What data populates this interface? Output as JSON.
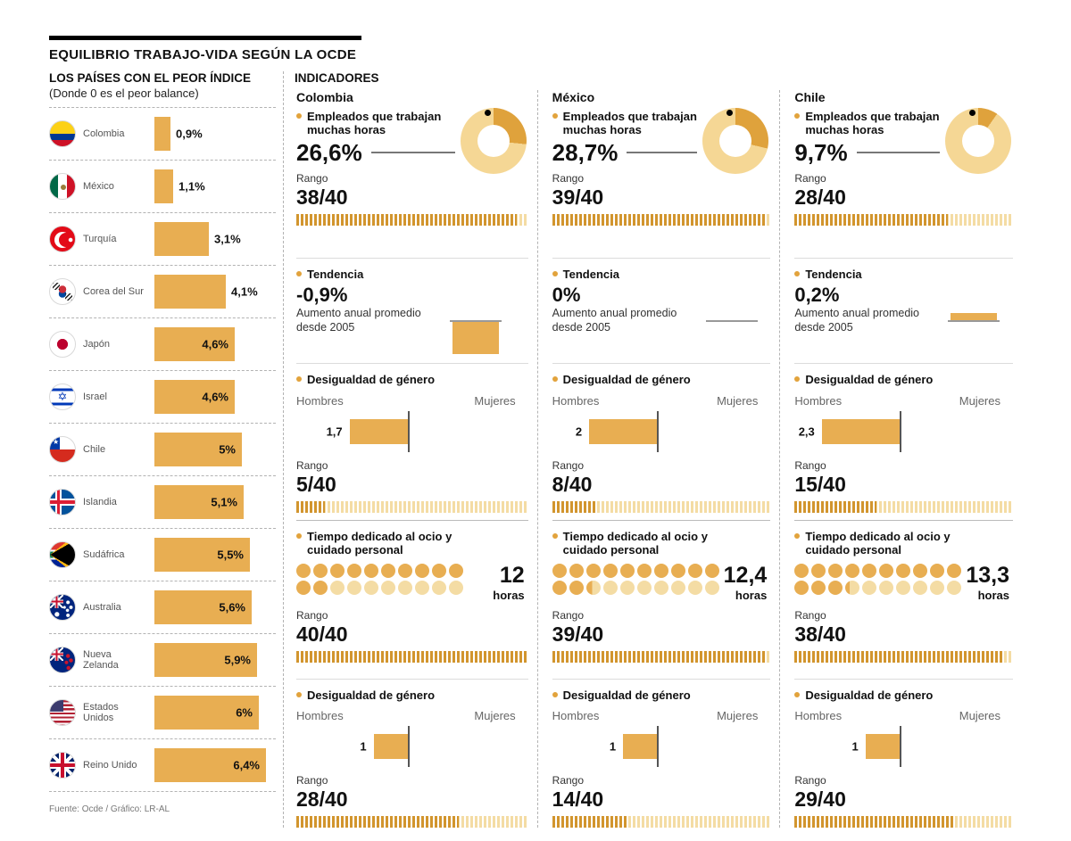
{
  "title": "EQUILIBRIO TRABAJO-VIDA SEGÚN LA OCDE",
  "colors": {
    "gold": "#e8ae52",
    "gold_dark": "#d2952e",
    "gold_light": "#f4dca4",
    "donut_ring": "#f5d795",
    "donut_segment": "#dfa23c",
    "dot_full": "#e8ae52",
    "dot_empty": "#f4dca4",
    "bullet": "#e2a33c"
  },
  "left_panel": {
    "heading": "LOS PAÍSES CON EL PEOR ÍNDICE",
    "subheading": "(Donde 0 es el peor balance)",
    "source": "Fuente: Ocde / Gráfico: LR-AL",
    "countries": [
      {
        "name": "Colombia",
        "label": "0,9%",
        "value": 0.9,
        "flag": "co"
      },
      {
        "name": "México",
        "label": "1,1%",
        "value": 1.1,
        "flag": "mx"
      },
      {
        "name": "Turquía",
        "label": "3,1%",
        "value": 3.1,
        "flag": "tr"
      },
      {
        "name": "Corea del Sur",
        "label": "4,1%",
        "value": 4.1,
        "flag": "kr"
      },
      {
        "name": "Japón",
        "label": "4,6%",
        "value": 4.6,
        "flag": "jp"
      },
      {
        "name": "Israel",
        "label": "4,6%",
        "value": 4.6,
        "flag": "il"
      },
      {
        "name": "Chile",
        "label": "5%",
        "value": 5.0,
        "flag": "cl"
      },
      {
        "name": "Islandia",
        "label": "5,1%",
        "value": 5.1,
        "flag": "is"
      },
      {
        "name": "Sudáfrica",
        "label": "5,5%",
        "value": 5.5,
        "flag": "za"
      },
      {
        "name": "Australia",
        "label": "5,6%",
        "value": 5.6,
        "flag": "au"
      },
      {
        "name": "Nueva Zelanda",
        "label": "5,9%",
        "value": 5.9,
        "flag": "nz"
      },
      {
        "name": "Estados Unidos",
        "label": "6%",
        "value": 6.0,
        "flag": "us"
      },
      {
        "name": "Reino Unido",
        "label": "6,4%",
        "value": 6.4,
        "flag": "gb"
      }
    ]
  },
  "indicators": {
    "heading": "INDICADORES",
    "columns": [
      {
        "country": "Colombia",
        "long_hours": {
          "title": "Empleados que trabajan muchas horas",
          "value_label": "26,6%",
          "pct": 26.6,
          "rango_label": "Rango",
          "rank_label": "38/40",
          "rank": 38
        },
        "trend": {
          "title": "Tendencia",
          "value_label": "-0,9%",
          "pct": -0.9,
          "note": "Aumento anual promedio desde 2005"
        },
        "gender_work": {
          "title": "Desigualdad de género",
          "left_label": "Hombres",
          "right_label": "Mujeres",
          "value_label": "1,7",
          "value": 1.7,
          "rango_label": "Rango",
          "rank_label": "5/40",
          "rank": 5
        },
        "leisure": {
          "title": "Tiempo dedicado al ocio y cuidado personal",
          "value_label": "12",
          "hours": 12,
          "unit": "horas",
          "rango_label": "Rango",
          "rank_label": "40/40",
          "rank": 40
        },
        "gender_leisure": {
          "title": "Desigualdad de género",
          "left_label": "Hombres",
          "right_label": "Mujeres",
          "value_label": "1",
          "value": 1,
          "rango_label": "Rango",
          "rank_label": "28/40",
          "rank": 28
        }
      },
      {
        "country": "México",
        "long_hours": {
          "title": "Empleados que trabajan muchas horas",
          "value_label": "28,7%",
          "pct": 28.7,
          "rango_label": "Rango",
          "rank_label": "39/40",
          "rank": 39
        },
        "trend": {
          "title": "Tendencia",
          "value_label": "0%",
          "pct": 0,
          "note": "Aumento anual promedio desde 2005"
        },
        "gender_work": {
          "title": "Desigualdad de género",
          "left_label": "Hombres",
          "right_label": "Mujeres",
          "value_label": "2",
          "value": 2,
          "rango_label": "Rango",
          "rank_label": "8/40",
          "rank": 8
        },
        "leisure": {
          "title": "Tiempo dedicado al ocio y cuidado personal",
          "value_label": "12,4",
          "hours": 12.4,
          "unit": "horas",
          "rango_label": "Rango",
          "rank_label": "39/40",
          "rank": 39
        },
        "gender_leisure": {
          "title": "Desigualdad de género",
          "left_label": "Hombres",
          "right_label": "Mujeres",
          "value_label": "1",
          "value": 1,
          "rango_label": "Rango",
          "rank_label": "14/40",
          "rank": 14
        }
      },
      {
        "country": "Chile",
        "long_hours": {
          "title": "Empleados que trabajan muchas horas",
          "value_label": "9,7%",
          "pct": 9.7,
          "rango_label": "Rango",
          "rank_label": "28/40",
          "rank": 28
        },
        "trend": {
          "title": "Tendencia",
          "value_label": "0,2%",
          "pct": 0.2,
          "note": "Aumento anual promedio desde 2005"
        },
        "gender_work": {
          "title": "Desigualdad de género",
          "left_label": "Hombres",
          "right_label": "Mujeres",
          "value_label": "2,3",
          "value": 2.3,
          "rango_label": "Rango",
          "rank_label": "15/40",
          "rank": 15
        },
        "leisure": {
          "title": "Tiempo dedicado al ocio y cuidado personal",
          "value_label": "13,3",
          "hours": 13.3,
          "unit": "horas",
          "rango_label": "Rango",
          "rank_label": "38/40",
          "rank": 38
        },
        "gender_leisure": {
          "title": "Desigualdad de género",
          "left_label": "Hombres",
          "right_label": "Mujeres",
          "value_label": "1",
          "value": 1,
          "rango_label": "Rango",
          "rank_label": "29/40",
          "rank": 29
        }
      }
    ]
  },
  "chart_data": [
    {
      "type": "bar",
      "orientation": "horizontal",
      "title": "LOS PAÍSES CON EL PEOR ÍNDICE (Donde 0 es el peor balance)",
      "categories": [
        "Colombia",
        "México",
        "Turquía",
        "Corea del Sur",
        "Japón",
        "Israel",
        "Chile",
        "Islandia",
        "Sudáfrica",
        "Australia",
        "Nueva Zelanda",
        "Estados Unidos",
        "Reino Unido"
      ],
      "values": [
        0.9,
        1.1,
        3.1,
        4.1,
        4.6,
        4.6,
        5.0,
        5.1,
        5.5,
        5.6,
        5.9,
        6.0,
        6.4
      ],
      "unit": "%",
      "xlim": [
        0,
        6.4
      ]
    },
    {
      "type": "table",
      "title": "INDICADORES",
      "columns": [
        "Indicador",
        "Colombia",
        "México",
        "Chile"
      ],
      "rows": [
        [
          "Empleados que trabajan muchas horas (%)",
          26.6,
          28.7,
          9.7
        ],
        [
          "Empleados que trabajan muchas horas — Rango",
          "38/40",
          "39/40",
          "28/40"
        ],
        [
          "Tendencia: aumento anual promedio desde 2005 (%)",
          -0.9,
          0,
          0.2
        ],
        [
          "Desigualdad de género en trabajo — Hombres",
          1.7,
          2,
          2.3
        ],
        [
          "Desigualdad de género (trabajo) — Rango",
          "5/40",
          "8/40",
          "15/40"
        ],
        [
          "Tiempo dedicado al ocio y cuidado personal (horas)",
          12,
          12.4,
          13.3
        ],
        [
          "Tiempo dedicado al ocio — Rango",
          "40/40",
          "39/40",
          "38/40"
        ],
        [
          "Desigualdad de género en ocio — Hombres",
          1,
          1,
          1
        ],
        [
          "Desigualdad de género (ocio) — Rango",
          "28/40",
          "14/40",
          "29/40"
        ]
      ]
    }
  ]
}
